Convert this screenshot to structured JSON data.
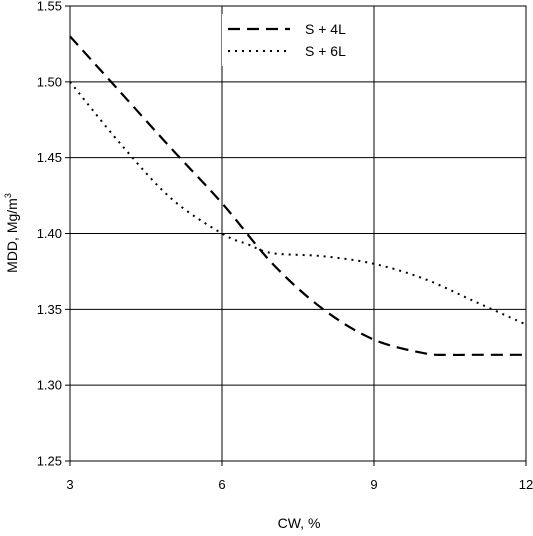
{
  "chart_data": {
    "type": "line",
    "xlabel": "CW, %",
    "ylabel_main": "MDD, Mg/m",
    "ylabel_sup": "3",
    "x_ticks": [
      3,
      6,
      9,
      12
    ],
    "y_ticks": [
      1.25,
      1.3,
      1.35,
      1.4,
      1.45,
      1.5,
      1.55
    ],
    "xlim": [
      3,
      12
    ],
    "ylim": [
      1.25,
      1.55
    ],
    "grid": true,
    "legend_position": "top-center",
    "series": [
      {
        "name": "S + 4L",
        "style": "dashed",
        "color": "#000000",
        "points": [
          [
            3,
            1.53
          ],
          [
            4,
            1.493
          ],
          [
            5,
            1.456
          ],
          [
            6,
            1.42
          ],
          [
            7,
            1.38
          ],
          [
            8,
            1.35
          ],
          [
            9,
            1.33
          ],
          [
            10,
            1.321
          ],
          [
            10.5,
            1.32
          ],
          [
            11,
            1.32
          ],
          [
            12,
            1.32
          ]
        ]
      },
      {
        "name": "S + 6L",
        "style": "dotted",
        "color": "#000000",
        "points": [
          [
            3,
            1.5
          ],
          [
            4,
            1.459
          ],
          [
            5,
            1.423
          ],
          [
            6,
            1.4
          ],
          [
            6.5,
            1.393
          ],
          [
            7,
            1.387
          ],
          [
            8,
            1.385
          ],
          [
            9,
            1.38
          ],
          [
            10,
            1.37
          ],
          [
            11,
            1.355
          ],
          [
            12,
            1.34
          ]
        ]
      }
    ]
  }
}
